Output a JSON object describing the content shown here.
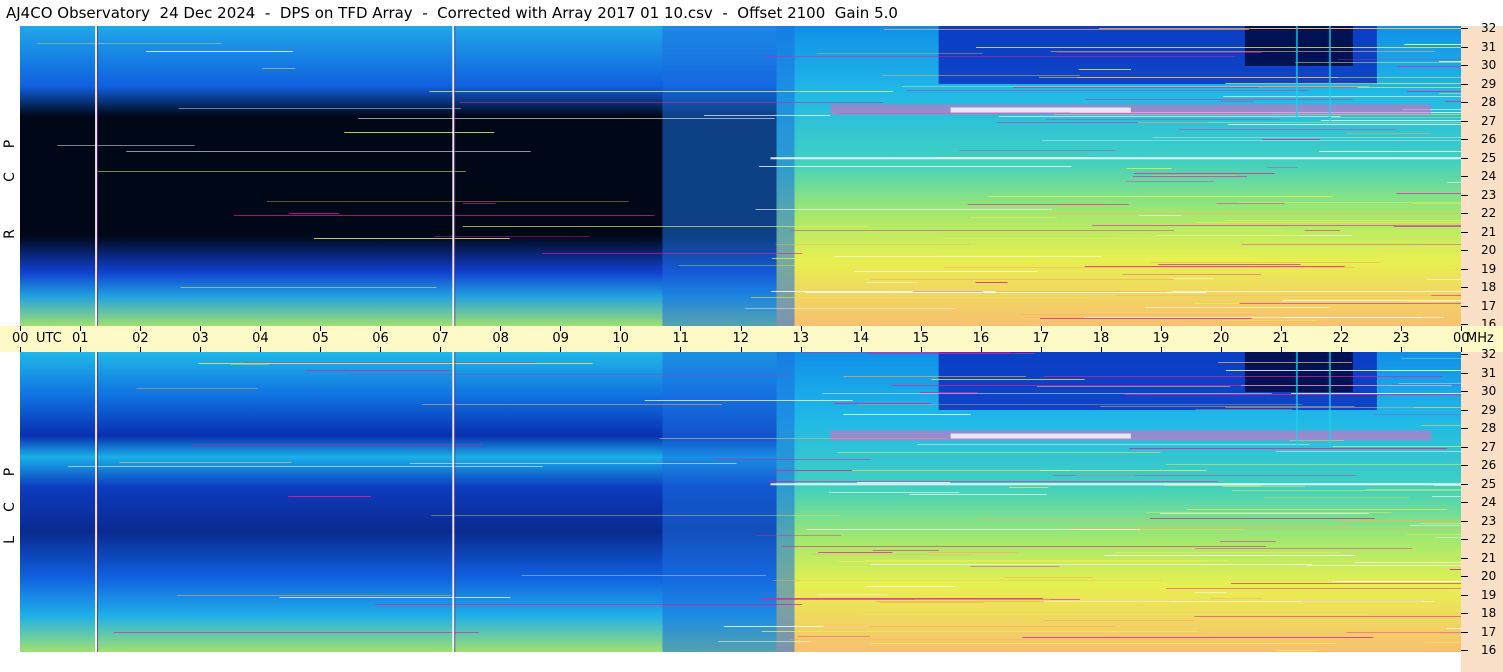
{
  "title": "AJ4CO Observatory  24 Dec 2024  -  DPS on TFD Array  -  Corrected with Array 2017 01 10.csv  -  Offset 2100  Gain 5.0",
  "panels": [
    {
      "id": "rcp",
      "letters": [
        "R",
        "C",
        "P"
      ]
    },
    {
      "id": "lcp",
      "letters": [
        "L",
        "C",
        "P"
      ]
    }
  ],
  "time_axis": {
    "labels": [
      "00",
      "UTC",
      "01",
      "02",
      "03",
      "04",
      "05",
      "06",
      "07",
      "08",
      "09",
      "10",
      "11",
      "12",
      "13",
      "14",
      "15",
      "16",
      "17",
      "18",
      "19",
      "20",
      "21",
      "22",
      "23",
      "00",
      "MHz"
    ]
  },
  "colors": {
    "background_blue": "#0a3ad8",
    "deep": "#000820",
    "cyan": "#1fd0e8",
    "green": "#7ee08a",
    "yellow": "#e8f050",
    "orange": "#f8b060",
    "magenta": "#e020a0",
    "time_axis_bg": "#fdfac8",
    "freq_axis_bg": "#fbe0c8"
  },
  "chart_data": {
    "type": "heatmap",
    "title": "AJ4CO Observatory  24 Dec 2024  -  DPS on TFD Array  -  Corrected with Array 2017 01 10.csv  -  Offset 2100  Gain 5.0",
    "xlabel": "UTC",
    "ylabel": "MHz",
    "x_ticks": [
      "00",
      "01",
      "02",
      "03",
      "04",
      "05",
      "06",
      "07",
      "08",
      "09",
      "10",
      "11",
      "12",
      "13",
      "14",
      "15",
      "16",
      "17",
      "18",
      "19",
      "20",
      "21",
      "22",
      "23",
      "00"
    ],
    "xlim": [
      0,
      24
    ],
    "ylim": [
      16,
      32
    ],
    "y_ticks": [
      16,
      17,
      18,
      19,
      20,
      21,
      22,
      23,
      24,
      25,
      26,
      27,
      28,
      29,
      30,
      31,
      32
    ],
    "panels": [
      "RCP",
      "LCP"
    ],
    "legend": "none"
  }
}
